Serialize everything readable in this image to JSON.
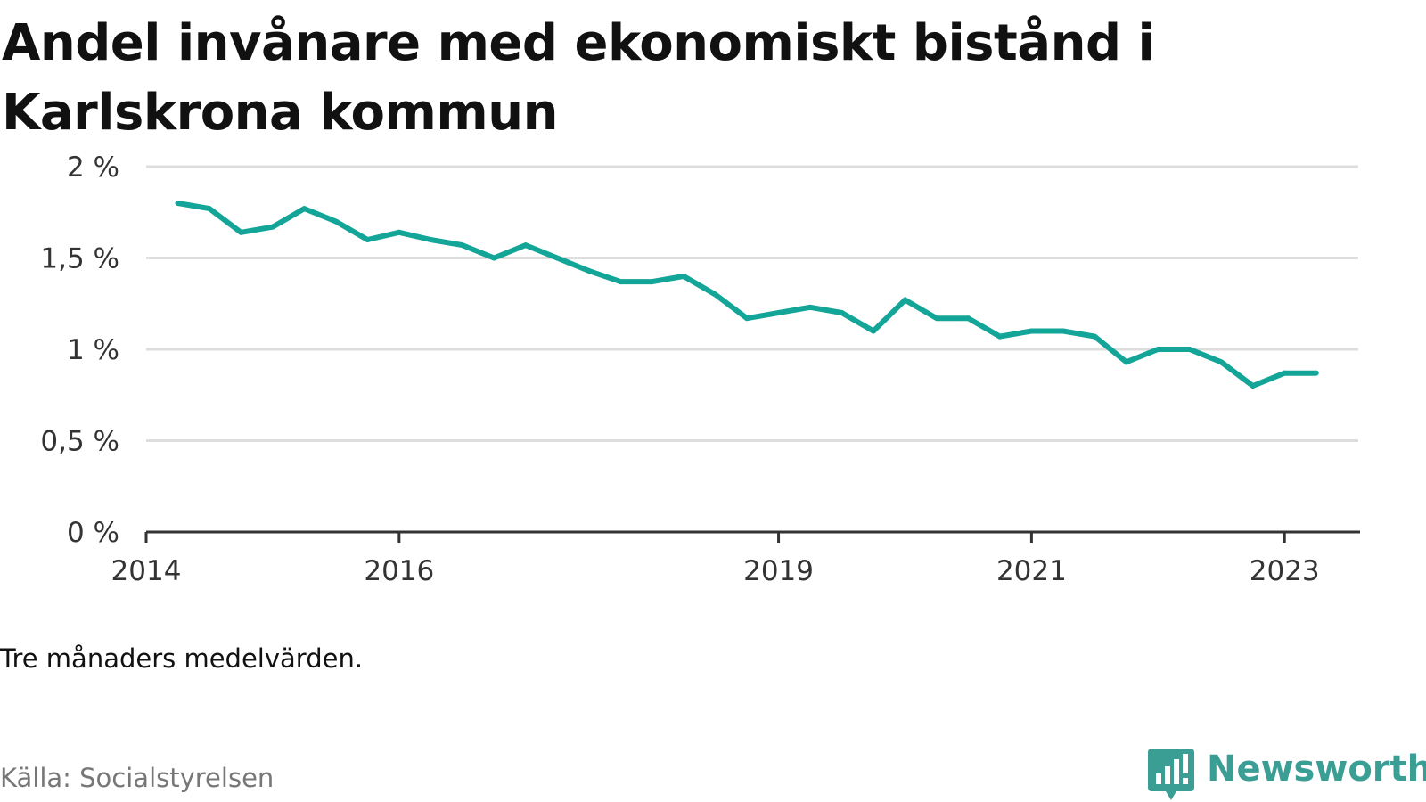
{
  "title": "Andel invånare med ekonomiskt bistånd i Karlskrona kommun",
  "note": "Tre månaders medelvärden.",
  "source": "Källa: Socialstyrelsen",
  "brand": {
    "name": "Newsworthy",
    "icon": "newsworthy-chart-logo-icon"
  },
  "colors": {
    "line": "#13a597",
    "grid": "#dddddd",
    "axis": "#333333",
    "brand": "#3a9e94"
  },
  "chart_data": {
    "type": "line",
    "title": "Andel invånare med ekonomiskt bistånd i Karlskrona kommun",
    "xlabel": "",
    "ylabel": "",
    "ylim": [
      0,
      2
    ],
    "yticks": [
      {
        "value": 0,
        "label": "0 %"
      },
      {
        "value": 0.5,
        "label": "0,5 %"
      },
      {
        "value": 1,
        "label": "1 %"
      },
      {
        "value": 1.5,
        "label": "1,5 %"
      },
      {
        "value": 2,
        "label": "2 %"
      }
    ],
    "xlim": [
      "2014-01",
      "2023-08"
    ],
    "xticks": [
      {
        "value": "2014-01",
        "label": "2014"
      },
      {
        "value": "2016-01",
        "label": "2016"
      },
      {
        "value": "2019-01",
        "label": "2019"
      },
      {
        "value": "2021-01",
        "label": "2021"
      },
      {
        "value": "2023-01",
        "label": "2023"
      }
    ],
    "grid": true,
    "legend": "none",
    "series": [
      {
        "x": [
          "2014-04",
          "2014-07",
          "2014-10",
          "2015-01",
          "2015-04",
          "2015-07",
          "2015-10",
          "2016-01",
          "2016-04",
          "2016-07",
          "2016-10",
          "2017-01",
          "2017-04",
          "2017-07",
          "2017-10",
          "2018-01",
          "2018-04",
          "2018-07",
          "2018-10",
          "2019-01",
          "2019-04",
          "2019-07",
          "2019-10",
          "2020-01",
          "2020-04",
          "2020-07",
          "2020-10",
          "2021-01",
          "2021-04",
          "2021-07",
          "2021-10",
          "2022-01",
          "2022-04",
          "2022-07",
          "2022-10",
          "2023-01",
          "2023-04"
        ],
        "values": [
          1.8,
          1.77,
          1.64,
          1.67,
          1.77,
          1.7,
          1.6,
          1.64,
          1.6,
          1.57,
          1.5,
          1.57,
          1.5,
          1.43,
          1.37,
          1.37,
          1.4,
          1.3,
          1.17,
          1.2,
          1.23,
          1.2,
          1.1,
          1.27,
          1.17,
          1.17,
          1.07,
          1.1,
          1.1,
          1.07,
          0.93,
          1.0,
          1.0,
          0.93,
          0.8,
          0.87,
          0.87
        ]
      }
    ]
  }
}
